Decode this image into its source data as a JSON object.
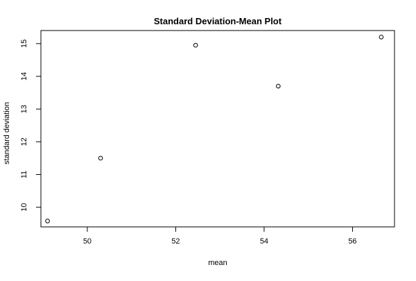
{
  "chart_data": {
    "type": "scatter",
    "title": "Standard Deviation-Mean Plot",
    "xlabel": "mean",
    "ylabel": "standard deviation",
    "xlim": [
      48.95,
      56.95
    ],
    "ylim": [
      9.4,
      15.4
    ],
    "x_ticks": [
      "50",
      "52",
      "54",
      "56"
    ],
    "y_ticks": [
      "10",
      "11",
      "12",
      "13",
      "14",
      "15"
    ],
    "grid": false,
    "points": [
      {
        "x": 49.1,
        "y": 9.58
      },
      {
        "x": 50.3,
        "y": 11.5
      },
      {
        "x": 52.45,
        "y": 14.95
      },
      {
        "x": 54.32,
        "y": 13.7
      },
      {
        "x": 56.65,
        "y": 15.2
      }
    ],
    "marker": "open-circle",
    "colors": {
      "marker": "#000000",
      "axes": "#000000",
      "background": "#ffffff"
    }
  }
}
